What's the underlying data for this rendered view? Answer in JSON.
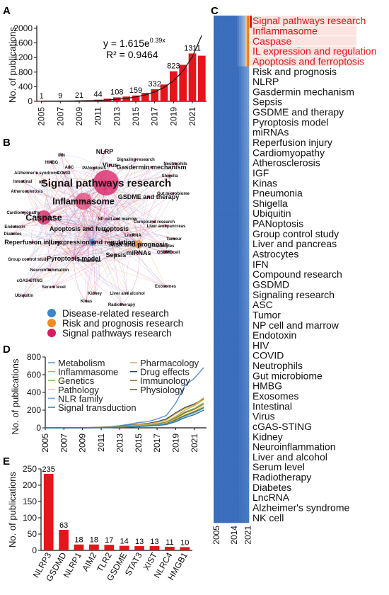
{
  "colors": {
    "bar": "#e8141c",
    "blue": "#3a6fbd",
    "orange": "#f08a24",
    "pink": "#d81b60",
    "red_text": "#e3151b"
  },
  "chart_data": [
    {
      "panel": "A",
      "type": "bar",
      "categories": [
        "2005",
        "2006",
        "2007",
        "2008",
        "2009",
        "2010",
        "2011",
        "2012",
        "2013",
        "2014",
        "2015",
        "2016",
        "2017",
        "2018",
        "2019",
        "2020",
        "2021",
        "2022"
      ],
      "x_tick_labels": [
        "2005",
        "2007",
        "2009",
        "2011",
        "2013",
        "2015",
        "2017",
        "2019",
        "2021"
      ],
      "values": [
        1,
        3,
        9,
        12,
        21,
        30,
        44,
        70,
        108,
        130,
        159,
        230,
        332,
        460,
        823,
        1000,
        1311,
        1250
      ],
      "bar_labels": [
        {
          "year": "2005",
          "text": "1"
        },
        {
          "year": "2007",
          "text": "9"
        },
        {
          "year": "2009",
          "text": "21"
        },
        {
          "year": "2011",
          "text": "44"
        },
        {
          "year": "2013",
          "text": "108"
        },
        {
          "year": "2015",
          "text": "159"
        },
        {
          "year": "2017",
          "text": "332"
        },
        {
          "year": "2019",
          "text": "823"
        },
        {
          "year": "2021",
          "text": "1311"
        }
      ],
      "ylabel": "No. of publications",
      "ylim": [
        0,
        2000
      ],
      "yticks": [
        0,
        400,
        800,
        1200,
        1600,
        2000
      ],
      "equation": "y = 1.615e",
      "equation_exp": "0.39x",
      "r2": "R² = 0.9464"
    },
    {
      "panel": "D",
      "type": "line",
      "x": [
        2005,
        2006,
        2007,
        2008,
        2009,
        2010,
        2011,
        2012,
        2013,
        2014,
        2015,
        2016,
        2017,
        2018,
        2019,
        2020,
        2021,
        2022
      ],
      "x_tick_labels": [
        "2005",
        "2007",
        "2009",
        "2011",
        "2013",
        "2015",
        "2017",
        "2019",
        "2021"
      ],
      "ylabel": "No. of publications",
      "ylim": [
        0,
        800
      ],
      "yticks": [
        0,
        200,
        400,
        600,
        800
      ],
      "legend": [
        [
          "Metabolism",
          "Pharmacology"
        ],
        [
          "Inflammasome",
          "Drug effects"
        ],
        [
          "Genetics",
          "Immunology"
        ],
        [
          "Pathology",
          "Physiology"
        ],
        [
          "NLR family",
          ""
        ],
        [
          "Signal transduction",
          ""
        ]
      ],
      "series": [
        {
          "name": "Metabolism",
          "color": "#5b8fd0",
          "values": [
            0,
            0,
            0,
            1,
            2,
            4,
            8,
            14,
            25,
            40,
            60,
            70,
            100,
            140,
            280,
            480,
            560,
            680
          ]
        },
        {
          "name": "Drug effects",
          "color": "#1d3f7a",
          "values": [
            0,
            0,
            0,
            1,
            2,
            3,
            6,
            10,
            18,
            28,
            40,
            50,
            70,
            100,
            170,
            230,
            270,
            330
          ]
        },
        {
          "name": "Inflammasome",
          "color": "#f0a030",
          "values": [
            0,
            0,
            0,
            1,
            2,
            3,
            6,
            9,
            16,
            25,
            36,
            45,
            62,
            90,
            160,
            220,
            260,
            340
          ]
        },
        {
          "name": "Pharmacology",
          "color": "#c8b060",
          "values": [
            0,
            0,
            0,
            1,
            1,
            2,
            4,
            7,
            12,
            18,
            26,
            34,
            48,
            70,
            130,
            200,
            250,
            320
          ]
        },
        {
          "name": "Genetics",
          "color": "#7ac05a",
          "values": [
            0,
            0,
            0,
            1,
            1,
            2,
            4,
            7,
            12,
            18,
            26,
            34,
            46,
            66,
            120,
            180,
            220,
            280
          ]
        },
        {
          "name": "Immunology",
          "color": "#9a6a30",
          "values": [
            0,
            0,
            0,
            0,
            1,
            2,
            3,
            6,
            10,
            15,
            22,
            30,
            42,
            60,
            110,
            170,
            210,
            270
          ]
        },
        {
          "name": "Pathology",
          "color": "#e6cf6a",
          "values": [
            0,
            0,
            0,
            0,
            1,
            2,
            3,
            5,
            9,
            14,
            20,
            27,
            38,
            55,
            100,
            150,
            190,
            250
          ]
        },
        {
          "name": "Physiology",
          "color": "#4a6a2a",
          "values": [
            0,
            0,
            0,
            0,
            1,
            1,
            3,
            5,
            8,
            12,
            18,
            24,
            34,
            48,
            90,
            140,
            180,
            230
          ]
        },
        {
          "name": "NLR family",
          "color": "#6aa6e0",
          "values": [
            0,
            0,
            0,
            0,
            1,
            1,
            2,
            4,
            7,
            11,
            16,
            22,
            30,
            44,
            80,
            130,
            170,
            220
          ]
        },
        {
          "name": "Signal transduction",
          "color": "#2c7a9a",
          "values": [
            0,
            0,
            0,
            0,
            0,
            1,
            2,
            3,
            6,
            9,
            14,
            19,
            26,
            38,
            70,
            115,
            150,
            200
          ]
        }
      ]
    },
    {
      "panel": "E",
      "type": "bar",
      "categories": [
        "NLRP3",
        "GSDMD",
        "NLRP1",
        "AIM2",
        "TLR2",
        "GSDME",
        "STAT3",
        "XIST",
        "NLRC4",
        "HMGB1"
      ],
      "values": [
        235,
        63,
        18,
        18,
        17,
        14,
        13,
        13,
        11,
        10
      ],
      "ylabel": "No. of publications",
      "ylim": [
        0,
        250
      ],
      "yticks": [
        0,
        50,
        100,
        150,
        200,
        250
      ]
    },
    {
      "panel": "C",
      "type": "heatmap",
      "x_tick_labels": [
        "2005",
        "2014",
        "2021"
      ],
      "rows": [
        "Signal pathways research",
        "Inflammasome",
        "Caspase",
        "IL expression and regulation",
        "Apoptosis and ferroptosis",
        "Risk and prognosis",
        "NLRP",
        "Gasdermin mechanism",
        "Sepsis",
        "GSDME and therapy",
        "Pyroptosis model",
        "miRNAs",
        "Reperfusion injury",
        "Cardiomyopathy",
        "Atherosclerosis",
        "IGF",
        "Kinas",
        "Pneumonia",
        "Shigella",
        "Ubiquitin",
        "PANoptosis",
        "Group control study",
        "Liver and pancreas",
        "Astrocytes",
        "IFN",
        "Compound research",
        "GSDMD",
        "Signaling research",
        "ASC",
        "Tumor",
        "NP cell and marrow",
        "Endotoxin",
        "HIV",
        "COVID",
        "Neutrophils",
        "Gut microbiome",
        "HMBG",
        "Exosomes",
        "Intestinal",
        "Virus",
        "cGAS-STING",
        "Kidney",
        "Neuroinflammation",
        "Liver and alcohol",
        "Serum level",
        "Radiotherapy",
        "Diabetes",
        "LncRNA",
        "Alzheimer's syndrome",
        "NK cell"
      ],
      "highlighted_rows": 5
    }
  ],
  "network": {
    "panel": "B",
    "legend": [
      {
        "label": "Disease-related research",
        "color": "#3a86c8"
      },
      {
        "label": "Risk and prognosis research",
        "color": "#f08a24"
      },
      {
        "label": "Signal pathways research",
        "color": "#d81b60"
      }
    ],
    "nodes": [
      {
        "label": "Signal pathways research",
        "size": 3
      },
      {
        "label": "Inflammasome",
        "size": 2
      },
      {
        "label": "Caspase",
        "size": 2
      },
      {
        "label": "Gasdermin mechanism",
        "size": 1
      },
      {
        "label": "GSDME and therapy",
        "size": 1
      },
      {
        "label": "Apoptosis and ferroptosis",
        "size": 1
      },
      {
        "label": "IL expression and regulation",
        "size": 1
      },
      {
        "label": "Reperfusion injury",
        "size": 1
      },
      {
        "label": "Risk and prognosis",
        "size": 1
      },
      {
        "label": "NLRP",
        "size": 1
      },
      {
        "label": "Virus",
        "size": 1
      },
      {
        "label": "Pyroptosis model",
        "size": 1
      },
      {
        "label": "Sepsis",
        "size": 1
      },
      {
        "label": "miRNAs",
        "size": 1
      },
      {
        "label": "IFN",
        "size": 0
      },
      {
        "label": "HMBG",
        "size": 0
      },
      {
        "label": "ASC",
        "size": 0
      },
      {
        "label": "PANoptosis",
        "size": 0
      },
      {
        "label": "Signaling research",
        "size": 0
      },
      {
        "label": "Neutrophils",
        "size": 0
      },
      {
        "label": "Alzheimer's syndrome",
        "size": 0
      },
      {
        "label": "COVID",
        "size": 0
      },
      {
        "label": "Shigella",
        "size": 0
      },
      {
        "label": "Intestinal",
        "size": 0
      },
      {
        "label": "IGF",
        "size": 0
      },
      {
        "label": "Atherosclerosis",
        "size": 0
      },
      {
        "label": "Gut microbiome",
        "size": 0
      },
      {
        "label": "Cardiomyopathy",
        "size": 0
      },
      {
        "label": "Endotoxin",
        "size": 0
      },
      {
        "label": "Diabetes",
        "size": 0
      },
      {
        "label": "NP cell and marrow",
        "size": 0
      },
      {
        "label": "Compound research",
        "size": 0
      },
      {
        "label": "Liver and pancreas",
        "size": 0
      },
      {
        "label": "HIV",
        "size": 0
      },
      {
        "label": "LncRNA",
        "size": 0
      },
      {
        "label": "Tumour",
        "size": 0
      },
      {
        "label": "Astrocytes",
        "size": 0
      },
      {
        "label": "GSDMD",
        "size": 0
      },
      {
        "label": "Group control study",
        "size": 0
      },
      {
        "label": "Pneumonia",
        "size": 0
      },
      {
        "label": "NK cell",
        "size": 0
      },
      {
        "label": "Neuroinflammation",
        "size": 0
      },
      {
        "label": "cGAS-STING",
        "size": 0
      },
      {
        "label": "Serum level",
        "size": 0
      },
      {
        "label": "Ubiquitin",
        "size": 0
      },
      {
        "label": "Kidney",
        "size": 0
      },
      {
        "label": "Liver and alcohol",
        "size": 0
      },
      {
        "label": "Exosomes",
        "size": 0
      },
      {
        "label": "Kinas",
        "size": 0
      },
      {
        "label": "Radiotherapy",
        "size": 0
      }
    ]
  },
  "panel_labels": {
    "A": "A",
    "B": "B",
    "C": "C",
    "D": "D",
    "E": "E"
  }
}
